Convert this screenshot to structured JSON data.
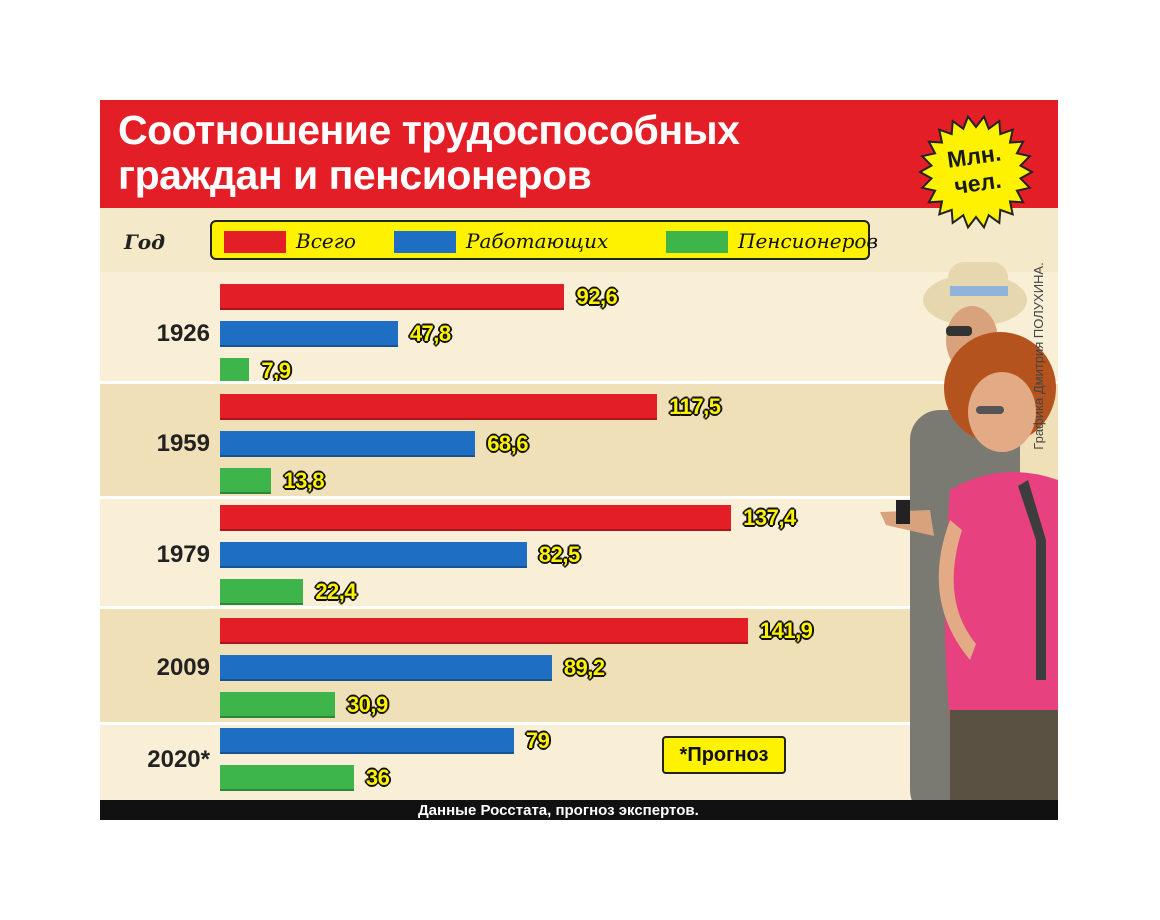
{
  "header": {
    "title": "Соотношение трудоспособных\nграждан и пенсионеров",
    "unit_badge": "Млн.\nчел."
  },
  "legend": {
    "year_header": "Год",
    "items": [
      {
        "label": "Всего",
        "color": "#e41e26"
      },
      {
        "label": "Работающих",
        "color": "#1e6fc4"
      },
      {
        "label": "Пенсионеров",
        "color": "#3db54a"
      }
    ]
  },
  "forecast_note": "*Прогноз",
  "credit": "Графика Дмитрия ПОЛУХИНА.",
  "footer": {
    "source": "Данные Росстата, прогноз экспертов."
  },
  "chart_data": {
    "type": "bar",
    "orientation": "horizontal",
    "unit": "Млн. чел.",
    "categories": [
      "1926",
      "1959",
      "1979",
      "2009",
      "2020*"
    ],
    "series": [
      {
        "name": "Всего",
        "color": "#e41e26",
        "values": [
          92.6,
          117.5,
          137.4,
          141.9,
          null
        ],
        "labels": [
          "92,6",
          "117,5",
          "137,4",
          "141,9",
          null
        ]
      },
      {
        "name": "Работающих",
        "color": "#1e6fc4",
        "values": [
          47.8,
          68.6,
          82.5,
          89.2,
          79
        ],
        "labels": [
          "47,8",
          "68,6",
          "82,5",
          "89,2",
          "79"
        ]
      },
      {
        "name": "Пенсионеров",
        "color": "#3db54a",
        "values": [
          7.9,
          13.8,
          22.4,
          30.9,
          36
        ],
        "labels": [
          "7,9",
          "13,8",
          "22,4",
          "30,9",
          "36"
        ]
      }
    ]
  }
}
